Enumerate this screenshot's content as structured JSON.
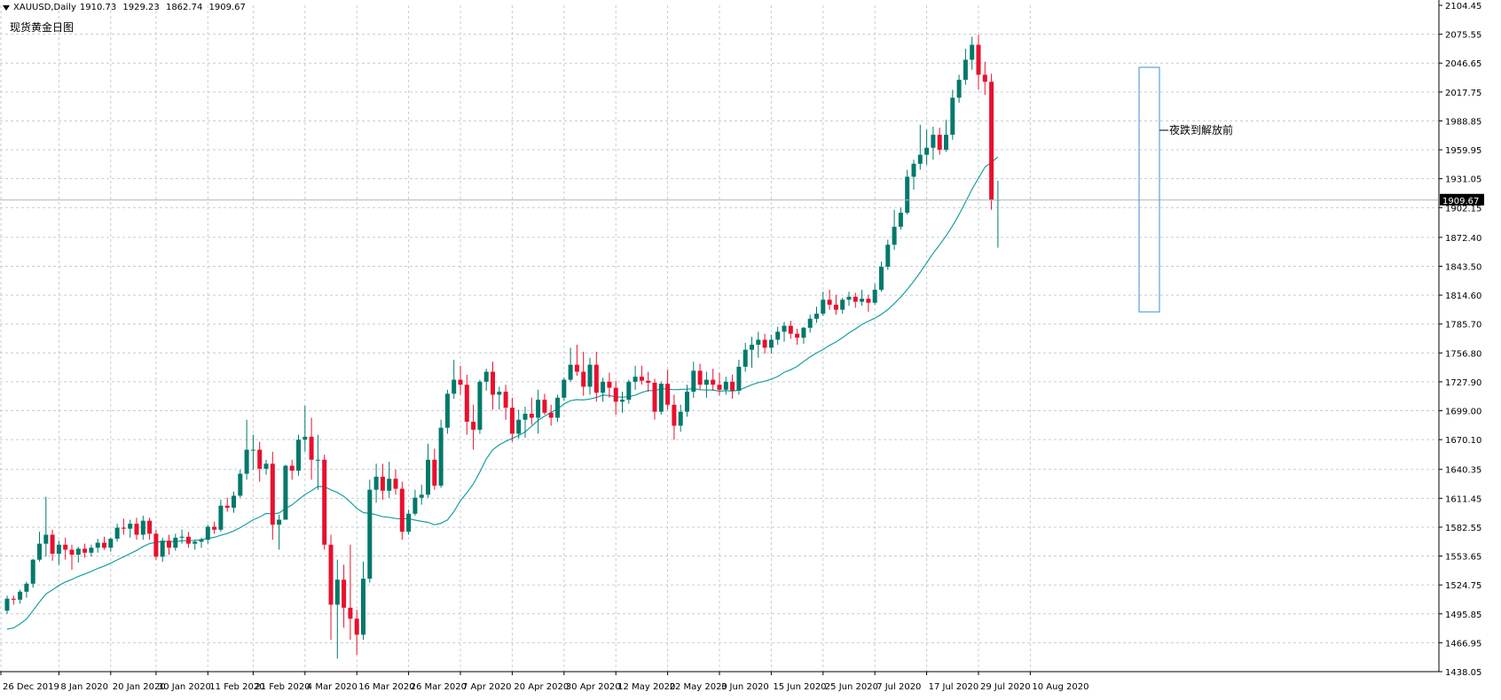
{
  "header": {
    "symbol": "XAUUSD,Daily",
    "open": "1910.73",
    "high": "1929.23",
    "low": "1862.74",
    "close": "1909.67"
  },
  "subtitle": "现货黄金日图",
  "annotation": "夜跌到解放前",
  "price_label": "1909.67",
  "colors": {
    "bull": "#00796b",
    "bear": "#e8102e",
    "ma": "#1a9e9e",
    "grid": "#c6ccd2",
    "box": "#3a8fd9",
    "price_line": "#b0b6bb"
  },
  "chart_data": {
    "type": "candlestick",
    "symbol": "XAUUSD",
    "timeframe": "Daily",
    "ylim": [
      1438.05,
      2104.45
    ],
    "y_ticks": [
      "2104.45",
      "2075.55",
      "2046.65",
      "2017.75",
      "1988.85",
      "1959.95",
      "1931.05",
      "1902.15",
      "1872.40",
      "1843.50",
      "1814.60",
      "1785.70",
      "1756.80",
      "1727.90",
      "1699.00",
      "1670.10",
      "1640.35",
      "1611.45",
      "1582.55",
      "1553.65",
      "1524.75",
      "1495.85",
      "1466.95",
      "1438.05"
    ],
    "x_labels": [
      "26 Dec 2019",
      "8 Jan 2020",
      "20 Jan 2020",
      "30 Jan 2020",
      "11 Feb 2020",
      "21 Feb 2020",
      "4 Mar 2020",
      "16 Mar 2020",
      "26 Mar 2020",
      "7 Apr 2020",
      "20 Apr 2020",
      "30 Apr 2020",
      "12 May 2020",
      "22 May 2020",
      "3 Jun 2020",
      "15 Jun 2020",
      "25 Jun 2020",
      "7 Jul 2020",
      "17 Jul 2020",
      "29 Jul 2020",
      "10 Aug 2020"
    ],
    "current_price": 1909.67,
    "candles": [
      [
        1499,
        1514,
        1496,
        1511
      ],
      [
        1511,
        1514,
        1505,
        1510
      ],
      [
        1510,
        1520,
        1506,
        1518
      ],
      [
        1518,
        1528,
        1512,
        1526
      ],
      [
        1526,
        1551,
        1522,
        1550
      ],
      [
        1550,
        1578,
        1548,
        1566
      ],
      [
        1566,
        1613,
        1553,
        1575
      ],
      [
        1575,
        1580,
        1549,
        1556
      ],
      [
        1556,
        1569,
        1545,
        1565
      ],
      [
        1565,
        1572,
        1550,
        1560
      ],
      [
        1560,
        1565,
        1540,
        1555
      ],
      [
        1555,
        1563,
        1547,
        1561
      ],
      [
        1561,
        1566,
        1552,
        1557
      ],
      [
        1557,
        1565,
        1553,
        1562
      ],
      [
        1562,
        1571,
        1557,
        1567
      ],
      [
        1567,
        1573,
        1560,
        1562
      ],
      [
        1562,
        1572,
        1558,
        1571
      ],
      [
        1571,
        1586,
        1568,
        1582
      ],
      [
        1582,
        1591,
        1575,
        1581
      ],
      [
        1581,
        1590,
        1572,
        1586
      ],
      [
        1586,
        1592,
        1570,
        1575
      ],
      [
        1575,
        1594,
        1570,
        1589
      ],
      [
        1589,
        1592,
        1570,
        1576
      ],
      [
        1576,
        1580,
        1550,
        1553
      ],
      [
        1553,
        1572,
        1548,
        1569
      ],
      [
        1569,
        1575,
        1555,
        1562
      ],
      [
        1562,
        1576,
        1559,
        1572
      ],
      [
        1572,
        1580,
        1566,
        1573
      ],
      [
        1573,
        1578,
        1562,
        1566
      ],
      [
        1566,
        1570,
        1560,
        1568
      ],
      [
        1568,
        1572,
        1562,
        1570
      ],
      [
        1570,
        1585,
        1566,
        1583
      ],
      [
        1583,
        1588,
        1576,
        1580
      ],
      [
        1580,
        1610,
        1578,
        1604
      ],
      [
        1604,
        1612,
        1598,
        1602
      ],
      [
        1602,
        1618,
        1597,
        1614
      ],
      [
        1614,
        1640,
        1612,
        1636
      ],
      [
        1636,
        1690,
        1630,
        1660
      ],
      [
        1660,
        1675,
        1640,
        1660
      ],
      [
        1660,
        1668,
        1628,
        1641
      ],
      [
        1641,
        1650,
        1635,
        1646
      ],
      [
        1646,
        1658,
        1570,
        1585
      ],
      [
        1585,
        1595,
        1560,
        1590
      ],
      [
        1590,
        1645,
        1590,
        1644
      ],
      [
        1644,
        1650,
        1630,
        1639
      ],
      [
        1639,
        1675,
        1634,
        1670
      ],
      [
        1670,
        1704,
        1658,
        1673
      ],
      [
        1673,
        1692,
        1630,
        1650
      ],
      [
        1650,
        1675,
        1620,
        1650
      ],
      [
        1650,
        1655,
        1560,
        1565
      ],
      [
        1565,
        1575,
        1470,
        1505
      ],
      [
        1505,
        1550,
        1451,
        1530
      ],
      [
        1530,
        1545,
        1482,
        1502
      ],
      [
        1502,
        1565,
        1470,
        1491
      ],
      [
        1491,
        1500,
        1455,
        1475
      ],
      [
        1475,
        1548,
        1470,
        1531
      ],
      [
        1531,
        1630,
        1527,
        1620
      ],
      [
        1620,
        1646,
        1607,
        1633
      ],
      [
        1633,
        1646,
        1610,
        1619
      ],
      [
        1619,
        1648,
        1612,
        1631
      ],
      [
        1631,
        1640,
        1615,
        1621
      ],
      [
        1621,
        1628,
        1570,
        1578
      ],
      [
        1578,
        1600,
        1575,
        1596
      ],
      [
        1596,
        1620,
        1594,
        1612
      ],
      [
        1612,
        1625,
        1605,
        1615
      ],
      [
        1615,
        1666,
        1612,
        1650
      ],
      [
        1650,
        1661,
        1620,
        1624
      ],
      [
        1624,
        1690,
        1622,
        1682
      ],
      [
        1682,
        1720,
        1676,
        1716
      ],
      [
        1716,
        1750,
        1711,
        1730
      ],
      [
        1730,
        1744,
        1715,
        1725
      ],
      [
        1725,
        1735,
        1675,
        1688
      ],
      [
        1688,
        1705,
        1660,
        1680
      ],
      [
        1680,
        1730,
        1676,
        1728
      ],
      [
        1728,
        1741,
        1719,
        1738
      ],
      [
        1738,
        1748,
        1700,
        1715
      ],
      [
        1715,
        1723,
        1700,
        1718
      ],
      [
        1718,
        1725,
        1690,
        1702
      ],
      [
        1702,
        1712,
        1668,
        1676
      ],
      [
        1676,
        1700,
        1671,
        1690
      ],
      [
        1690,
        1703,
        1672,
        1696
      ],
      [
        1696,
        1712,
        1685,
        1692
      ],
      [
        1692,
        1720,
        1676,
        1710
      ],
      [
        1710,
        1716,
        1695,
        1697
      ],
      [
        1697,
        1705,
        1684,
        1692
      ],
      [
        1692,
        1715,
        1688,
        1712
      ],
      [
        1712,
        1732,
        1709,
        1730
      ],
      [
        1730,
        1762,
        1728,
        1745
      ],
      [
        1745,
        1765,
        1734,
        1738
      ],
      [
        1738,
        1758,
        1714,
        1723
      ],
      [
        1723,
        1752,
        1715,
        1745
      ],
      [
        1745,
        1758,
        1708,
        1717
      ],
      [
        1717,
        1732,
        1708,
        1728
      ],
      [
        1728,
        1737,
        1712,
        1722
      ],
      [
        1722,
        1729,
        1695,
        1708
      ],
      [
        1708,
        1718,
        1697,
        1710
      ],
      [
        1710,
        1730,
        1706,
        1728
      ],
      [
        1728,
        1744,
        1720,
        1733
      ],
      [
        1733,
        1744,
        1725,
        1729
      ],
      [
        1729,
        1738,
        1718,
        1727
      ],
      [
        1727,
        1731,
        1690,
        1698
      ],
      [
        1698,
        1728,
        1695,
        1726
      ],
      [
        1726,
        1740,
        1700,
        1705
      ],
      [
        1705,
        1715,
        1670,
        1684
      ],
      [
        1684,
        1705,
        1678,
        1698
      ],
      [
        1698,
        1725,
        1693,
        1718
      ],
      [
        1718,
        1748,
        1712,
        1739
      ],
      [
        1739,
        1746,
        1720,
        1725
      ],
      [
        1725,
        1738,
        1712,
        1730
      ],
      [
        1730,
        1741,
        1719,
        1725
      ],
      [
        1725,
        1737,
        1714,
        1720
      ],
      [
        1720,
        1733,
        1715,
        1728
      ],
      [
        1728,
        1735,
        1711,
        1719
      ],
      [
        1719,
        1750,
        1715,
        1743
      ],
      [
        1743,
        1767,
        1738,
        1760
      ],
      [
        1760,
        1773,
        1742,
        1765
      ],
      [
        1765,
        1778,
        1752,
        1770
      ],
      [
        1770,
        1776,
        1756,
        1762
      ],
      [
        1762,
        1775,
        1756,
        1770
      ],
      [
        1770,
        1783,
        1765,
        1778
      ],
      [
        1778,
        1788,
        1768,
        1784
      ],
      [
        1784,
        1789,
        1771,
        1776
      ],
      [
        1776,
        1781,
        1765,
        1772
      ],
      [
        1772,
        1783,
        1766,
        1782
      ],
      [
        1782,
        1795,
        1777,
        1791
      ],
      [
        1791,
        1803,
        1787,
        1796
      ],
      [
        1796,
        1818,
        1794,
        1810
      ],
      [
        1810,
        1820,
        1800,
        1805
      ],
      [
        1805,
        1815,
        1795,
        1800
      ],
      [
        1800,
        1812,
        1796,
        1810
      ],
      [
        1810,
        1818,
        1804,
        1813
      ],
      [
        1813,
        1817,
        1802,
        1808
      ],
      [
        1808,
        1820,
        1804,
        1811
      ],
      [
        1811,
        1815,
        1798,
        1807
      ],
      [
        1807,
        1826,
        1805,
        1820
      ],
      [
        1820,
        1848,
        1818,
        1843
      ],
      [
        1843,
        1870,
        1840,
        1865
      ],
      [
        1865,
        1900,
        1860,
        1883
      ],
      [
        1883,
        1902,
        1880,
        1897
      ],
      [
        1897,
        1940,
        1895,
        1933
      ],
      [
        1933,
        1950,
        1920,
        1946
      ],
      [
        1946,
        1985,
        1940,
        1955
      ],
      [
        1955,
        1980,
        1945,
        1962
      ],
      [
        1962,
        1983,
        1950,
        1975
      ],
      [
        1975,
        1982,
        1955,
        1960
      ],
      [
        1960,
        1990,
        1958,
        1975
      ],
      [
        1975,
        2020,
        1970,
        2012
      ],
      [
        2012,
        2035,
        2007,
        2030
      ],
      [
        2030,
        2061,
        2025,
        2050
      ],
      [
        2050,
        2073,
        2040,
        2065
      ],
      [
        2065,
        2075,
        2020,
        2035
      ],
      [
        2035,
        2048,
        2015,
        2028
      ],
      [
        2028,
        2036,
        1900,
        1910
      ],
      [
        1910,
        1929,
        1862,
        1910
      ]
    ],
    "ma_period": 20
  }
}
